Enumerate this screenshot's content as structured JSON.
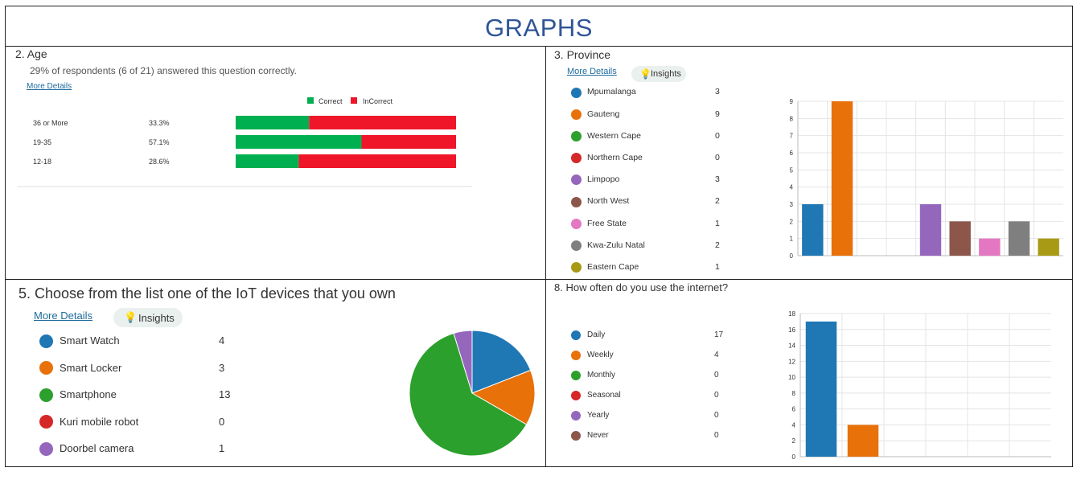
{
  "page_title": "GRAPHS",
  "panels": {
    "age": {
      "question": "2.  Age",
      "summary": "29% of respondents (6 of 21) answered this question correctly.",
      "more_details": "More Details",
      "legend_correct": "Correct",
      "legend_incorrect": "InCorrect"
    },
    "province": {
      "question": "3.  Province",
      "more_details": "More Details",
      "insights": "Insights"
    },
    "iot": {
      "question": "5.  Choose from the list one of the IoT devices that you own",
      "more_details": "More Details",
      "insights": "Insights"
    },
    "internet": {
      "question": "8.  How often do you use the internet?"
    }
  },
  "colors": {
    "correct": "#00B050",
    "incorrect": "#F0162A",
    "blue": "#1F77B4",
    "orange": "#E8710A",
    "green": "#2CA02C",
    "red": "#D62728",
    "purple": "#9467BD",
    "brown": "#8C564B",
    "pink": "#E377C2",
    "gray": "#7F7F7F",
    "olive": "#A89A14"
  },
  "chart_data": [
    {
      "type": "bar",
      "orientation": "horizontal-stacked",
      "categories": [
        "36 or More",
        "19-35",
        "12-18"
      ],
      "percent_labels": [
        "33.3%",
        "57.1%",
        "28.6%"
      ],
      "series": [
        {
          "name": "Correct",
          "values": [
            33.3,
            57.1,
            28.6
          ]
        },
        {
          "name": "InCorrect",
          "values": [
            66.7,
            42.9,
            71.4
          ]
        }
      ],
      "legend": "top"
    },
    {
      "type": "bar",
      "categories": [
        "Mpumalanga",
        "Gauteng",
        "Western Cape",
        "Northern Cape",
        "Limpopo",
        "North West",
        "Free State",
        "Kwa-Zulu Natal",
        "Eastern Cape"
      ],
      "values": [
        3,
        9,
        0,
        0,
        3,
        2,
        1,
        2,
        1
      ],
      "ylim": [
        0,
        9
      ],
      "yticks": [
        "0",
        "1",
        "2",
        "3",
        "4",
        "5",
        "6",
        "7",
        "8",
        "9"
      ],
      "grid": true,
      "legend": "left"
    },
    {
      "type": "pie",
      "categories": [
        "Smart Watch",
        "Smart Locker",
        "Smartphone",
        "Kuri mobile robot",
        "Doorbel camera"
      ],
      "values": [
        4,
        3,
        13,
        0,
        1
      ],
      "legend": "left"
    },
    {
      "type": "bar",
      "categories": [
        "Daily",
        "Weekly",
        "Monthly",
        "Seasonal",
        "Yearly",
        "Never"
      ],
      "values": [
        17,
        4,
        0,
        0,
        0,
        0
      ],
      "ylim": [
        0,
        18
      ],
      "yticks": [
        "0",
        "2",
        "4",
        "6",
        "8",
        "10",
        "12",
        "14",
        "16",
        "18"
      ],
      "grid": true,
      "legend": "left"
    }
  ]
}
